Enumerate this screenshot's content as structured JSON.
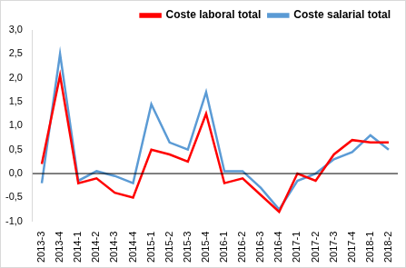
{
  "chart_data": {
    "type": "line",
    "categories": [
      "2013-3",
      "2013-4",
      "2014-1",
      "2014-2",
      "2014-3",
      "2014-4",
      "2015-1",
      "2015-2",
      "2015-3",
      "2015-4",
      "2016-1",
      "2016-2",
      "2016-3",
      "2016-4",
      "2017-1",
      "2017-2",
      "2017-3",
      "2017-4",
      "2018-1",
      "2018-2"
    ],
    "series": [
      {
        "name": "Coste laboral total",
        "color": "#ff0000",
        "line_style": "solid",
        "marker": "none",
        "values": [
          0.2,
          2.05,
          -0.2,
          -0.1,
          -0.4,
          -0.5,
          0.5,
          0.4,
          0.25,
          1.25,
          -0.2,
          -0.1,
          -0.45,
          -0.8,
          0.0,
          -0.15,
          0.4,
          0.7,
          0.65,
          0.65
        ]
      },
      {
        "name": "Coste salarial total",
        "color": "#5b9bd5",
        "line_style": "solid",
        "marker": "none",
        "values": [
          -0.2,
          2.5,
          -0.15,
          0.05,
          -0.05,
          -0.2,
          1.45,
          0.65,
          0.5,
          1.7,
          0.05,
          0.05,
          -0.3,
          -0.75,
          -0.15,
          0.0,
          0.3,
          0.45,
          0.8,
          0.5
        ]
      }
    ],
    "ylim": [
      -1.0,
      3.0
    ],
    "yticks": [
      {
        "value": -1.0,
        "label": "-1,0"
      },
      {
        "value": -0.5,
        "label": "-0,5"
      },
      {
        "value": 0.0,
        "label": "0,0"
      },
      {
        "value": 0.5,
        "label": "0,5"
      },
      {
        "value": 1.0,
        "label": "1,0"
      },
      {
        "value": 1.5,
        "label": "1,5"
      },
      {
        "value": 2.0,
        "label": "2,0"
      },
      {
        "value": 2.5,
        "label": "2,5"
      },
      {
        "value": 3.0,
        "label": "3,0"
      }
    ],
    "grid": false,
    "legend": "top"
  }
}
